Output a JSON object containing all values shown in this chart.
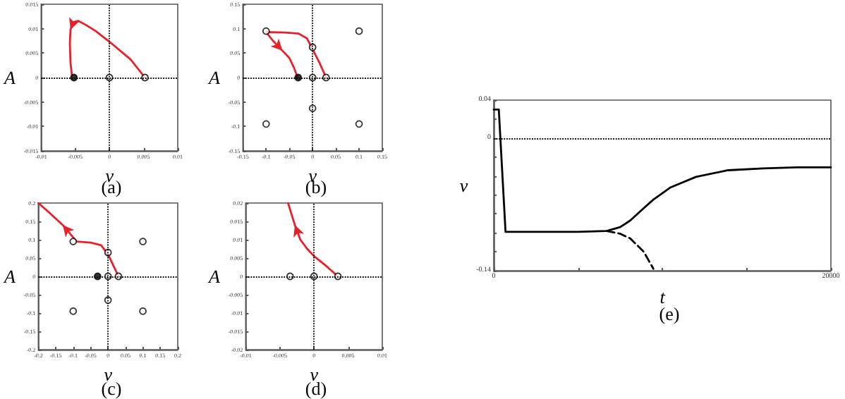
{
  "chart_data": [
    {
      "type": "line",
      "xlabel": "v",
      "ylabel": "A",
      "annotations": [
        "(a)"
      ],
      "xlim": [
        -0.01,
        0.01
      ],
      "xticks": [
        -0.01,
        -0.005,
        0,
        0.005,
        0.01
      ],
      "ylim": [
        -0.015,
        0.015
      ],
      "yticks": [
        -0.015,
        -0.01,
        -0.005,
        0,
        0.005,
        0.01,
        0.015
      ],
      "series": [
        {
          "color": "#e8202a",
          "x": [
            0.0052,
            0.0031,
            0.0002,
            -0.002,
            -0.0035,
            -0.0046,
            -0.0053,
            -0.0057,
            -0.0058,
            -0.0057,
            -0.0055
          ],
          "values": [
            0,
            0.0037,
            0.0071,
            0.0095,
            0.0108,
            0.0116,
            0.0113,
            0.0098,
            0.007,
            0.003,
            0.0005
          ]
        },
        {
          "type": "scatter",
          "color": "#000000",
          "x": [
            -0.0052
          ],
          "values": [
            0
          ]
        },
        {
          "type": "scatter",
          "color": "#ffffff",
          "x": [
            0,
            0.0052
          ],
          "values": [
            0,
            0
          ]
        }
      ],
      "ref_lines": [
        {
          "axis": "x",
          "value": 0,
          "line_style": "dotted"
        },
        {
          "axis": "y",
          "value": 0,
          "line_style": "dotted"
        }
      ]
    },
    {
      "type": "line",
      "xlabel": "v",
      "ylabel": "A",
      "annotations": [
        "(b)"
      ],
      "xlim": [
        -0.15,
        0.15
      ],
      "xticks": [
        -0.15,
        -0.1,
        -0.05,
        0,
        0.05,
        0.1,
        0.15
      ],
      "ylim": [
        -0.15,
        0.15
      ],
      "yticks": [
        -0.15,
        -0.1,
        -0.05,
        0,
        0.05,
        0.1,
        0.15
      ],
      "series": [
        {
          "color": "#e8202a",
          "x": [
            0.029,
            0.015,
            0.0,
            -0.012,
            -0.03,
            -0.06,
            -0.1,
            -0.085,
            -0.065,
            -0.05,
            -0.04,
            -0.033
          ],
          "values": [
            0,
            0.03,
            0.058,
            0.08,
            0.09,
            0.092,
            0.093,
            0.075,
            0.055,
            0.04,
            0.02,
            0.002
          ]
        },
        {
          "type": "scatter",
          "color": "#000000",
          "x": [
            -0.031
          ],
          "values": [
            0
          ]
        },
        {
          "type": "scatter",
          "color": "#ffffff",
          "x": [
            -0.1,
            0.1,
            0,
            0,
            0.029,
            0,
            -0.1,
            0.1
          ],
          "values": [
            0.095,
            0.095,
            0.062,
            0,
            0,
            -0.063,
            -0.095,
            -0.095
          ]
        }
      ],
      "ref_lines": [
        {
          "axis": "x",
          "value": 0,
          "line_style": "dotted"
        },
        {
          "axis": "y",
          "value": 0,
          "line_style": "dotted"
        }
      ]
    },
    {
      "type": "line",
      "xlabel": "v",
      "ylabel": "A",
      "annotations": [
        "(c)"
      ],
      "xlim": [
        -0.2,
        0.2
      ],
      "xticks": [
        -0.2,
        -0.15,
        -0.1,
        -0.05,
        0,
        0.05,
        0.1,
        0.15,
        0.2
      ],
      "ylim": [
        -0.2,
        0.2
      ],
      "yticks": [
        -0.2,
        -0.15,
        -0.1,
        -0.05,
        0,
        0.05,
        0.1,
        0.15,
        0.2
      ],
      "series": [
        {
          "color": "#e8202a",
          "x": [
            0.03,
            0.015,
            0.0,
            -0.02,
            -0.05,
            -0.09,
            -0.13,
            -0.17,
            -0.2
          ],
          "values": [
            0,
            0.03,
            0.06,
            0.085,
            0.092,
            0.095,
            0.14,
            0.175,
            0.2
          ]
        },
        {
          "type": "scatter",
          "color": "#000000",
          "x": [
            -0.03
          ],
          "values": [
            0
          ]
        },
        {
          "type": "scatter",
          "color": "#ffffff",
          "x": [
            -0.1,
            0.1,
            0,
            0,
            0.03,
            0,
            -0.1,
            0.1
          ],
          "values": [
            0.095,
            0.095,
            0.065,
            0,
            0,
            -0.065,
            -0.095,
            -0.095
          ]
        }
      ],
      "ref_lines": [
        {
          "axis": "x",
          "value": 0,
          "line_style": "dotted"
        },
        {
          "axis": "y",
          "value": 0,
          "line_style": "dotted"
        }
      ]
    },
    {
      "type": "line",
      "xlabel": "v",
      "ylabel": "A",
      "annotations": [
        "(d)"
      ],
      "xlim": [
        -0.01,
        0.01
      ],
      "xticks": [
        -0.01,
        -0.005,
        0,
        0.005,
        0.01
      ],
      "ylim": [
        -0.02,
        0.02
      ],
      "yticks": [
        -0.02,
        -0.015,
        -0.01,
        -0.005,
        0,
        0.005,
        0.01,
        0.015,
        0.02
      ],
      "series": [
        {
          "color": "#e8202a",
          "x": [
            0.0035,
            0.0018,
            0,
            -0.001,
            -0.002,
            -0.0028,
            -0.0033,
            -0.0038
          ],
          "values": [
            0,
            0.0028,
            0.0055,
            0.0075,
            0.01,
            0.014,
            0.017,
            0.02
          ]
        },
        {
          "type": "scatter",
          "color": "#ffffff",
          "x": [
            -0.0035,
            0,
            0.0035
          ],
          "values": [
            0,
            0,
            0
          ]
        }
      ],
      "ref_lines": [
        {
          "axis": "x",
          "value": 0,
          "line_style": "dotted"
        },
        {
          "axis": "y",
          "value": 0,
          "line_style": "dotted"
        }
      ]
    },
    {
      "type": "line",
      "xlabel": "t",
      "ylabel": "v",
      "annotations": [
        "(e)"
      ],
      "xlim": [
        0,
        20000
      ],
      "xticks": [
        0,
        {
          "value": 5000,
          "label": null
        },
        {
          "value": 10000,
          "label": null
        },
        {
          "value": 15000,
          "label": null
        },
        20000
      ],
      "ylim": [
        -0.14,
        0.04
      ],
      "yticks": [
        -0.14,
        {
          "value": -0.12,
          "label": null
        },
        {
          "value": -0.1,
          "label": null
        },
        {
          "value": -0.08,
          "label": null
        },
        {
          "value": -0.06,
          "label": null
        },
        {
          "value": -0.04,
          "label": null
        },
        {
          "value": -0.02,
          "label": null
        },
        0,
        {
          "value": 0.02,
          "label": null
        },
        0.04
      ],
      "x": [
        0,
        300,
        700,
        1000,
        3000,
        5000,
        6700,
        7500,
        8100,
        8900,
        9470,
        10500,
        12000,
        13900,
        16000,
        18000,
        20000
      ],
      "series": [
        {
          "color": "#000000",
          "values": [
            0.03,
            0.03,
            -0.099,
            -0.099,
            -0.099,
            -0.099,
            -0.098,
            -0.094,
            -0.087,
            -0.074,
            -0.065,
            -0.052,
            -0.041,
            -0.034,
            -0.032,
            -0.031,
            -0.031
          ]
        },
        {
          "color": "#000000",
          "line_style": "dashed",
          "values": [
            null,
            null,
            null,
            null,
            null,
            null,
            -0.098,
            -0.101,
            -0.106,
            -0.12,
            -0.138,
            null,
            null,
            null,
            null,
            null,
            null
          ]
        }
      ],
      "ref_lines": [
        {
          "axis": "y",
          "value": 0,
          "line_style": "dotted"
        }
      ]
    }
  ]
}
